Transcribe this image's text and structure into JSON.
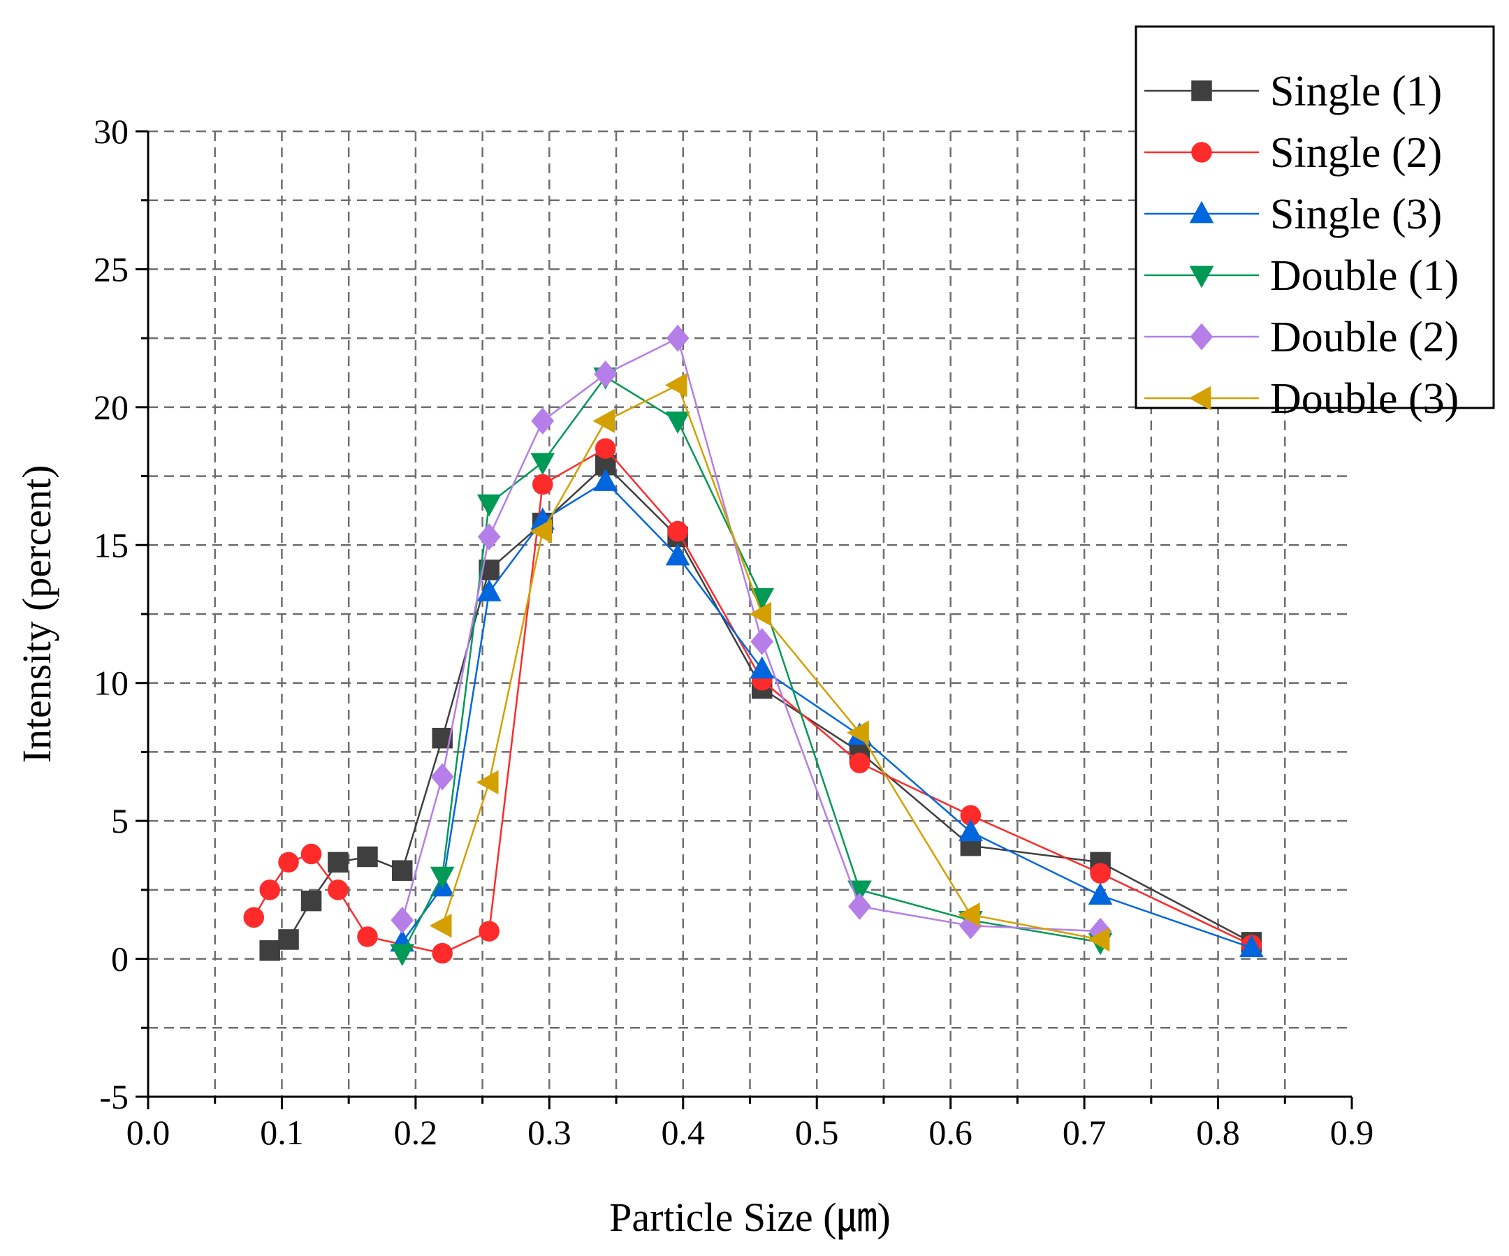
{
  "chart_data": {
    "type": "line",
    "title": "",
    "xlabel": "Particle Size (㎛)",
    "ylabel": "Intensity (percent)",
    "xlim": [
      0.0,
      0.9
    ],
    "ylim": [
      -5,
      30
    ],
    "xticks": [
      "0.0",
      "0.1",
      "0.2",
      "0.3",
      "0.4",
      "0.5",
      "0.6",
      "0.7",
      "0.8",
      "0.9"
    ],
    "yticks": [
      "-5",
      "0",
      "5",
      "10",
      "15",
      "20",
      "25",
      "30"
    ],
    "grid": true,
    "legend_position": "top-right",
    "series": [
      {
        "name": "Single (1)",
        "color": "#3f3f3f",
        "marker": "square",
        "x": [
          0.091,
          0.105,
          0.122,
          0.142,
          0.164,
          0.19,
          0.22,
          0.255,
          0.295,
          0.342,
          0.396,
          0.459,
          0.532,
          0.615,
          0.712,
          0.825
        ],
        "y": [
          0.3,
          0.7,
          2.1,
          3.5,
          3.7,
          3.2,
          8.0,
          14.1,
          15.8,
          17.9,
          15.3,
          9.8,
          7.5,
          4.1,
          3.5,
          0.6
        ]
      },
      {
        "name": "Single (2)",
        "color": "#ff2a2a",
        "marker": "circle",
        "x": [
          0.079,
          0.091,
          0.105,
          0.122,
          0.142,
          0.164,
          0.22,
          0.255,
          0.295,
          0.342,
          0.396,
          0.459,
          0.532,
          0.615,
          0.712,
          0.825
        ],
        "y": [
          1.5,
          2.5,
          3.5,
          3.8,
          2.5,
          0.8,
          0.2,
          1.0,
          17.2,
          18.5,
          15.5,
          10.1,
          7.1,
          5.2,
          3.1,
          0.5
        ]
      },
      {
        "name": "Single (3)",
        "color": "#0066dd",
        "marker": "triangle-up",
        "x": [
          0.19,
          0.22,
          0.255,
          0.295,
          0.342,
          0.396,
          0.459,
          0.532,
          0.615,
          0.712,
          0.825
        ],
        "y": [
          0.6,
          2.6,
          13.3,
          15.9,
          17.3,
          14.6,
          10.5,
          8.1,
          4.6,
          2.3,
          0.4
        ]
      },
      {
        "name": "Double (1)",
        "color": "#009955",
        "marker": "triangle-down",
        "x": [
          0.19,
          0.22,
          0.255,
          0.295,
          0.342,
          0.396,
          0.459,
          0.532,
          0.615,
          0.712
        ],
        "y": [
          0.2,
          3.0,
          16.5,
          18.0,
          21.1,
          19.5,
          13.1,
          2.5,
          1.4,
          0.6
        ]
      },
      {
        "name": "Double (2)",
        "color": "#b57ee8",
        "marker": "diamond",
        "x": [
          0.19,
          0.22,
          0.255,
          0.295,
          0.342,
          0.396,
          0.459,
          0.532,
          0.615,
          0.712
        ],
        "y": [
          1.4,
          6.6,
          15.3,
          19.5,
          21.2,
          22.5,
          11.5,
          1.9,
          1.2,
          1.0
        ]
      },
      {
        "name": "Double (3)",
        "color": "#d4a000",
        "marker": "triangle-left",
        "x": [
          0.22,
          0.255,
          0.295,
          0.342,
          0.396,
          0.459,
          0.532,
          0.615,
          0.712
        ],
        "y": [
          1.2,
          6.4,
          15.5,
          19.5,
          20.8,
          12.5,
          8.2,
          1.6,
          0.7
        ]
      }
    ]
  }
}
